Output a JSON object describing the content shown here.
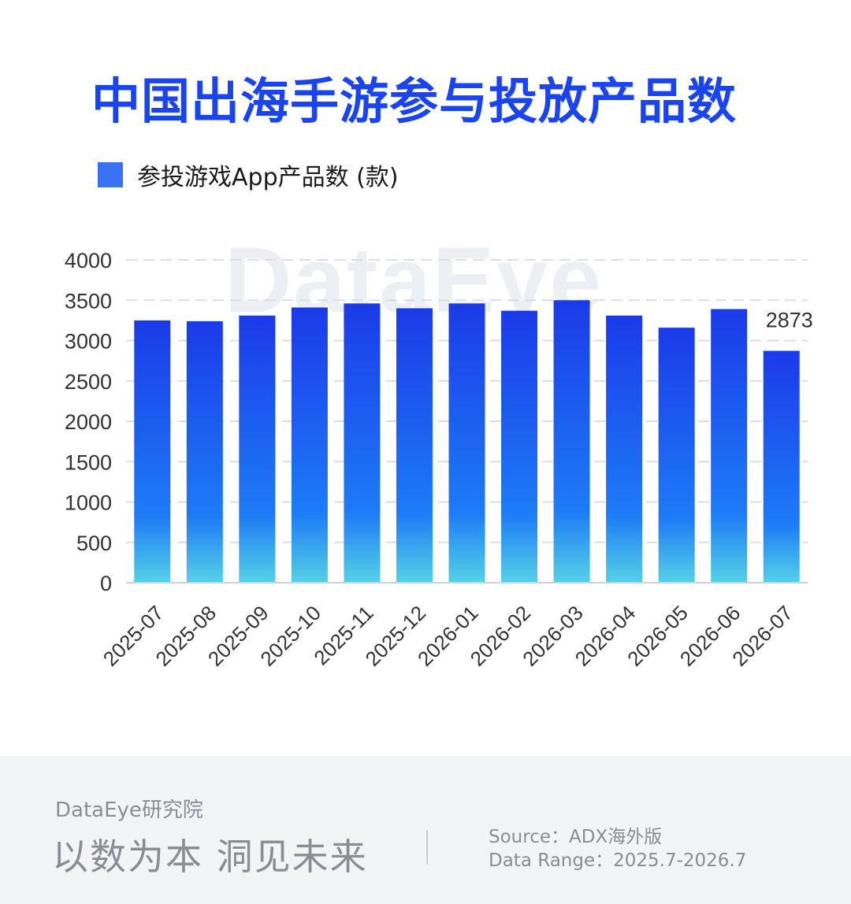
{
  "title": "中国出海手游参与投放产品数",
  "legend": {
    "label": "参投游戏App产品数 (款)",
    "color": "#3a72f6"
  },
  "watermark": "DataEye",
  "colors": {
    "bar_top": "#1b3ae9",
    "bar_mid": "#1d7cf6",
    "bar_bottom": "#55d1e6",
    "title": "#1a44f0"
  },
  "chart_data": {
    "type": "bar",
    "categories": [
      "2025-07",
      "2025-08",
      "2025-09",
      "2025-10",
      "2025-11",
      "2025-12",
      "2026-01",
      "2026-02",
      "2026-03",
      "2026-04",
      "2026-05",
      "2026-06",
      "2026-07"
    ],
    "series": [
      {
        "name": "参投游戏App产品数 (款)",
        "values": [
          3250,
          3240,
          3310,
          3410,
          3460,
          3400,
          3460,
          3370,
          3500,
          3310,
          3160,
          3390,
          2873
        ]
      }
    ],
    "yticks": [
      0,
      500,
      1000,
      1500,
      2000,
      2500,
      3000,
      3500,
      4000
    ],
    "ylim": [
      0,
      4000
    ],
    "data_labels": [
      {
        "index": 12,
        "text": "2873"
      }
    ],
    "grid": true
  },
  "footer": {
    "org": "DataEye研究院",
    "slogan": "以数为本 洞见未来",
    "source": "Source：ADX海外版",
    "range": "Data Range：2025.7-2026.7"
  }
}
